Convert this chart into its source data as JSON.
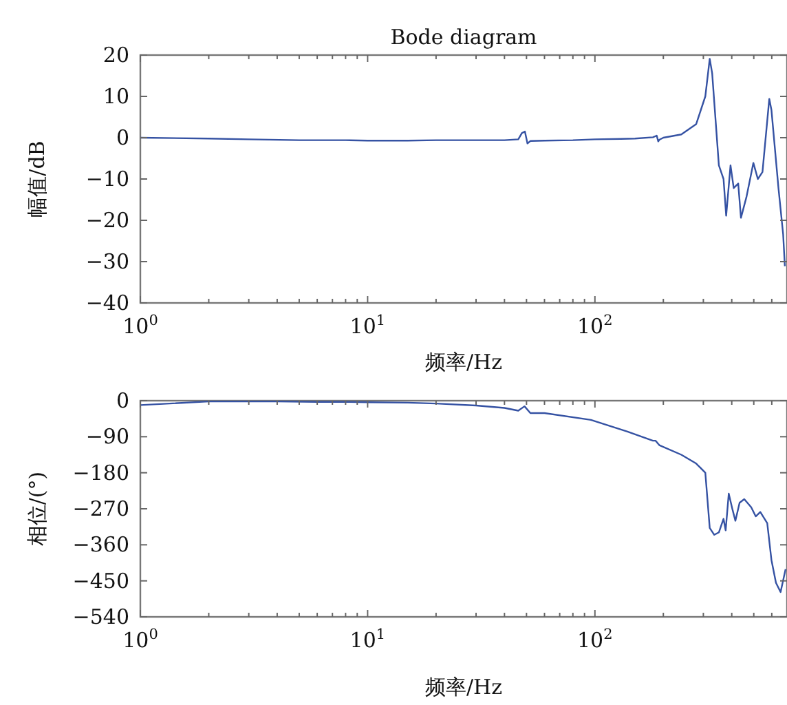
{
  "chart_data": [
    {
      "type": "line",
      "title": "Bode diagram",
      "xlabel": "频率/Hz",
      "ylabel": "幅值/dB",
      "log": "x",
      "xlim": [
        1,
        700
      ],
      "ylim": [
        -40,
        20
      ],
      "xticks": [
        {
          "value": 1,
          "label": "10$^{0}$"
        },
        {
          "value": 2,
          "label": null
        },
        {
          "value": 3,
          "label": null
        },
        {
          "value": 4,
          "label": null
        },
        {
          "value": 5,
          "label": null
        },
        {
          "value": 6,
          "label": null
        },
        {
          "value": 7,
          "label": null
        },
        {
          "value": 8,
          "label": null
        },
        {
          "value": 9,
          "label": null
        },
        {
          "value": 10,
          "label": "10$^{1}$"
        },
        {
          "value": 20,
          "label": null
        },
        {
          "value": 30,
          "label": null
        },
        {
          "value": 40,
          "label": null
        },
        {
          "value": 50,
          "label": null
        },
        {
          "value": 60,
          "label": null
        },
        {
          "value": 70,
          "label": null
        },
        {
          "value": 80,
          "label": null
        },
        {
          "value": 90,
          "label": null
        },
        {
          "value": 100,
          "label": "10$^{2}$"
        },
        {
          "value": 200,
          "label": null
        },
        {
          "value": 300,
          "label": null
        },
        {
          "value": 400,
          "label": null
        },
        {
          "value": 500,
          "label": null
        },
        {
          "value": 600,
          "label": null
        }
      ],
      "yticks": [
        {
          "value": 20,
          "label": "20"
        },
        {
          "value": 10,
          "label": "10"
        },
        {
          "value": 0,
          "label": "0"
        },
        {
          "value": -10,
          "label": "−10"
        },
        {
          "value": -20,
          "label": "−20"
        },
        {
          "value": -30,
          "label": "−30"
        },
        {
          "value": -40,
          "label": "−40"
        }
      ],
      "grid": false,
      "series": [
        {
          "color": "#3552a3",
          "x": [
            1,
            2,
            3,
            5,
            8,
            10,
            15,
            20,
            30,
            40,
            46,
            47.7,
            49.2,
            50.5,
            52,
            60,
            80,
            100,
            130,
            150,
            180,
            187,
            190,
            192,
            200,
            240,
            279,
            306,
            320,
            328,
            351,
            368,
            378,
            395,
            408,
            427,
            439,
            464,
            498,
            521,
            546,
            585,
            598,
            642,
            673,
            685
          ],
          "values": [
            0,
            -0.2,
            -0.4,
            -0.6,
            -0.6,
            -0.7,
            -0.7,
            -0.6,
            -0.6,
            -0.6,
            -0.4,
            1.1,
            1.5,
            -1.4,
            -0.8,
            -0.7,
            -0.6,
            -0.4,
            -0.3,
            -0.2,
            0.1,
            0.5,
            -0.9,
            -0.5,
            0,
            0.8,
            3.3,
            10,
            19.1,
            15.6,
            -6.7,
            -10,
            -18.9,
            -6.7,
            -12.2,
            -11.1,
            -19.4,
            -14.4,
            -6.1,
            -10,
            -8.3,
            9.4,
            6.7,
            -12.2,
            -23.3,
            -31.1
          ]
        }
      ]
    },
    {
      "type": "line",
      "xlabel": "频率/Hz",
      "ylabel": "相位/(°)",
      "log": "x",
      "xlim": [
        1,
        700
      ],
      "ylim": [
        -540,
        0
      ],
      "xticks": [
        {
          "value": 1,
          "label": "10$^{0}$"
        },
        {
          "value": 2,
          "label": null
        },
        {
          "value": 3,
          "label": null
        },
        {
          "value": 4,
          "label": null
        },
        {
          "value": 5,
          "label": null
        },
        {
          "value": 6,
          "label": null
        },
        {
          "value": 7,
          "label": null
        },
        {
          "value": 8,
          "label": null
        },
        {
          "value": 9,
          "label": null
        },
        {
          "value": 10,
          "label": "10$^{1}$"
        },
        {
          "value": 20,
          "label": null
        },
        {
          "value": 30,
          "label": null
        },
        {
          "value": 40,
          "label": null
        },
        {
          "value": 50,
          "label": null
        },
        {
          "value": 60,
          "label": null
        },
        {
          "value": 70,
          "label": null
        },
        {
          "value": 80,
          "label": null
        },
        {
          "value": 90,
          "label": null
        },
        {
          "value": 100,
          "label": "10$^{2}$"
        },
        {
          "value": 200,
          "label": null
        },
        {
          "value": 300,
          "label": null
        },
        {
          "value": 400,
          "label": null
        },
        {
          "value": 500,
          "label": null
        },
        {
          "value": 600,
          "label": null
        }
      ],
      "yticks": [
        0,
        {
          "value": -90,
          "label": "−90"
        },
        {
          "value": -180,
          "label": "−180"
        },
        {
          "value": -270,
          "label": "−270"
        },
        {
          "value": -360,
          "label": "−360"
        },
        {
          "value": -450,
          "label": "−450"
        },
        {
          "value": -540,
          "label": "−540"
        }
      ],
      "grid": false,
      "series": [
        {
          "color": "#3552a3",
          "x": [
            1,
            2,
            4,
            6,
            8,
            10,
            15,
            20,
            30,
            40,
            46,
            49,
            52,
            60,
            96,
            139,
            180,
            185,
            190,
            192,
            240,
            279,
            306,
            320,
            335,
            351,
            368,
            376,
            388,
            403,
            415,
            433,
            454,
            487,
            510,
            534,
            573,
            598,
            626,
            656,
            690
          ],
          "values": [
            -11,
            -2,
            -2,
            -3,
            -3,
            -4,
            -5,
            -7,
            -12,
            -18,
            -25,
            -14,
            -31,
            -31,
            -48,
            -77,
            -100,
            -100,
            -108,
            -111,
            -135,
            -157,
            -180,
            -318,
            -335,
            -329,
            -295,
            -324,
            -232,
            -272,
            -300,
            -255,
            -246,
            -266,
            -289,
            -278,
            -306,
            -398,
            -455,
            -478,
            -421
          ]
        }
      ]
    }
  ]
}
